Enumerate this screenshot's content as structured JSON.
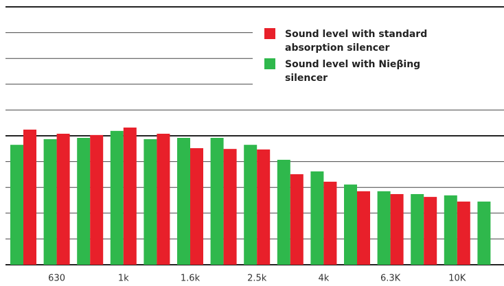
{
  "chart_data": {
    "type": "bar",
    "categories": [
      null,
      "630",
      null,
      "1k",
      null,
      "1.6k",
      null,
      "2.5k",
      null,
      "4k",
      null,
      "6.3K",
      null,
      "10K",
      null
    ],
    "series": [
      {
        "name": "Sound level with Nieβing silencer",
        "color": "#2fb84c",
        "values": [
          4.65,
          4.87,
          4.92,
          5.19,
          4.87,
          4.92,
          4.92,
          4.65,
          4.07,
          3.62,
          3.11,
          2.85,
          2.74,
          2.69,
          2.45
        ]
      },
      {
        "name": "Sound level with standard absorption silencer",
        "color": "#e8202a",
        "values": [
          5.24,
          5.08,
          5.03,
          5.32,
          5.08,
          4.52,
          4.49,
          4.47,
          3.51,
          3.22,
          2.85,
          2.74,
          2.63,
          2.45,
          null
        ]
      }
    ],
    "ylim": [
      0,
      10
    ],
    "yticks": [
      0,
      1,
      2,
      3,
      4,
      5,
      6,
      7,
      8,
      9,
      10
    ],
    "grid": true
  }
}
